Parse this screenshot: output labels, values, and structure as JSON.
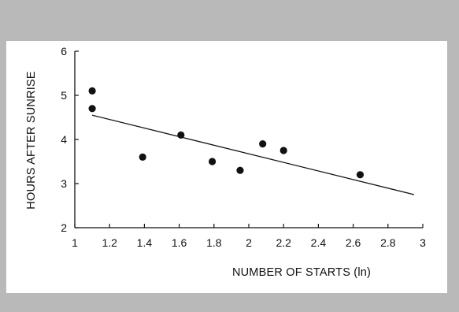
{
  "chart_data": {
    "type": "scatter",
    "xlabel": "NUMBER OF STARTS (ln)",
    "ylabel": "HOURS AFTER SUNRISE",
    "xlim": [
      1,
      3
    ],
    "ylim": [
      2,
      6
    ],
    "xticks": [
      "1",
      "1.2",
      "1.4",
      "1.6",
      "1.8",
      "2",
      "2.2",
      "2.4",
      "2.6",
      "2.8",
      "3"
    ],
    "yticks": [
      "2",
      "3",
      "4",
      "5",
      "6"
    ],
    "grid": false,
    "legend": "none",
    "points": [
      {
        "x": 1.1,
        "y": 5.1
      },
      {
        "x": 1.1,
        "y": 4.7
      },
      {
        "x": 1.39,
        "y": 3.6
      },
      {
        "x": 1.61,
        "y": 4.1
      },
      {
        "x": 1.79,
        "y": 3.5
      },
      {
        "x": 1.95,
        "y": 3.3
      },
      {
        "x": 2.08,
        "y": 3.9
      },
      {
        "x": 2.2,
        "y": 3.75
      },
      {
        "x": 2.64,
        "y": 3.2
      }
    ],
    "trendline": {
      "x": [
        1.1,
        2.95
      ],
      "y": [
        4.55,
        2.75
      ]
    },
    "colors": {
      "marks": "#111111",
      "axes": "#111111",
      "background": "#ffffff"
    }
  }
}
